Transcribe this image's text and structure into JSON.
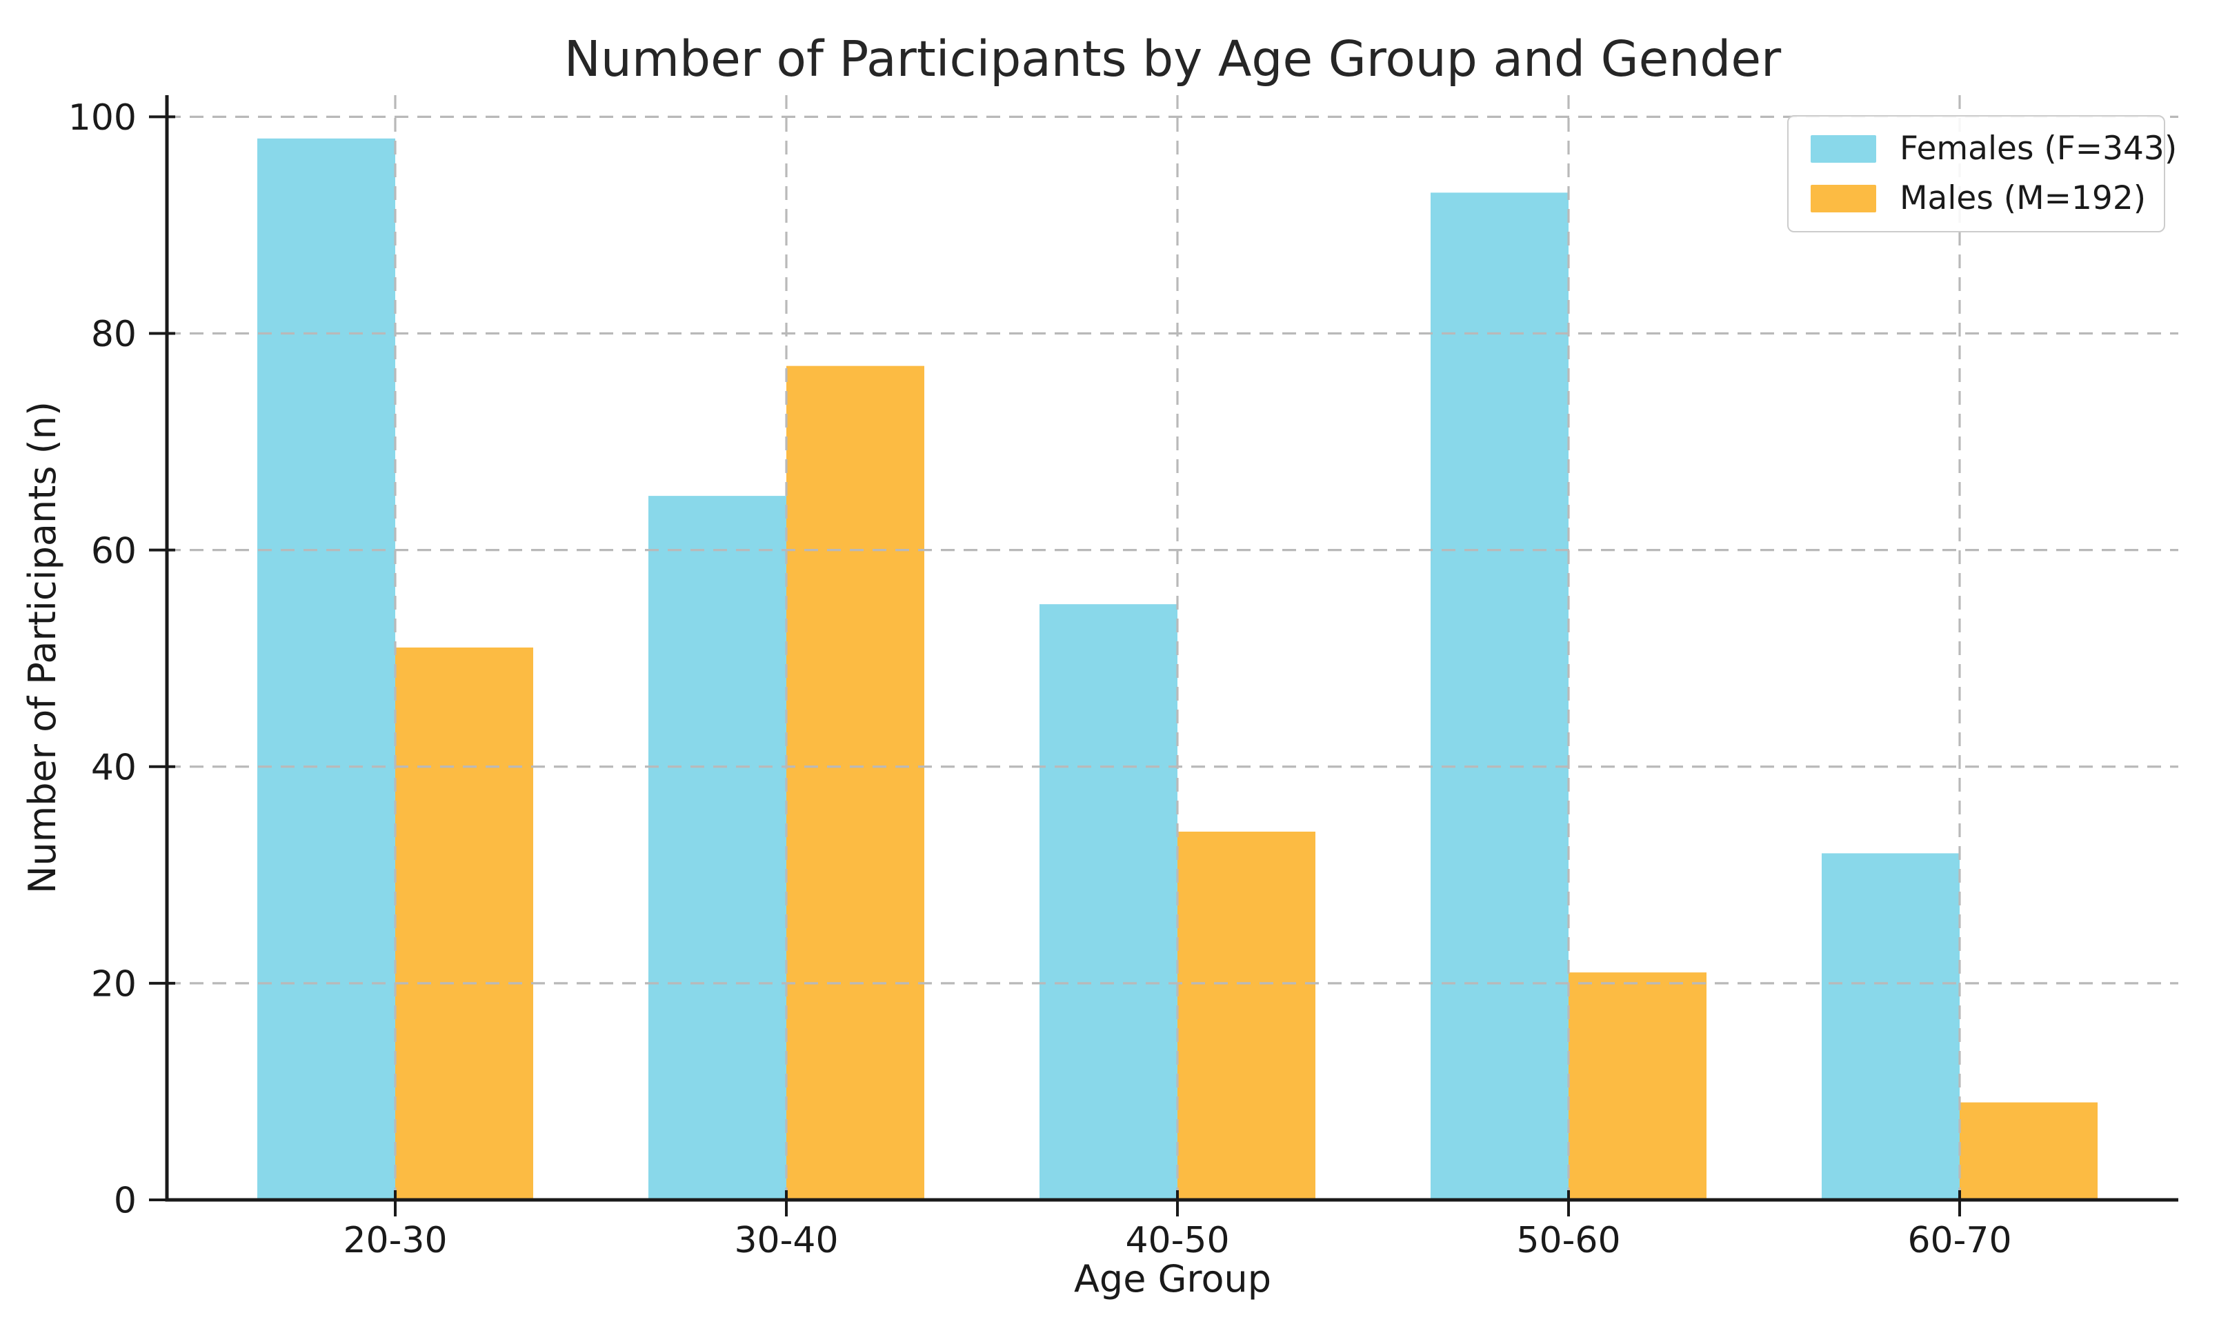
{
  "chart_data": {
    "type": "bar",
    "title": "Number of Participants by Age Group and Gender",
    "xlabel": "Age Group",
    "ylabel": "Number of Participants (n)",
    "categories": [
      "20-30",
      "30-40",
      "40-50",
      "50-60",
      "60-70"
    ],
    "series": [
      {
        "name": "Females (F=343)",
        "color": "#89D8EA",
        "values": [
          98,
          65,
          55,
          93,
          32
        ]
      },
      {
        "name": "Males (M=192)",
        "color": "#FCBB43",
        "values": [
          51,
          77,
          34,
          21,
          9
        ]
      }
    ],
    "yticks": [
      0,
      20,
      40,
      60,
      80,
      100
    ],
    "ylim": [
      0,
      102
    ],
    "grid": true,
    "grid_style": "dashed",
    "grid_above_bars": true,
    "legend_position": "upper right",
    "colors": {
      "grid": "#b9b9b9",
      "axis": "#1a1a1a",
      "text": "#1a1a1a",
      "legend_border": "#cccccc",
      "background": "#ffffff"
    }
  }
}
